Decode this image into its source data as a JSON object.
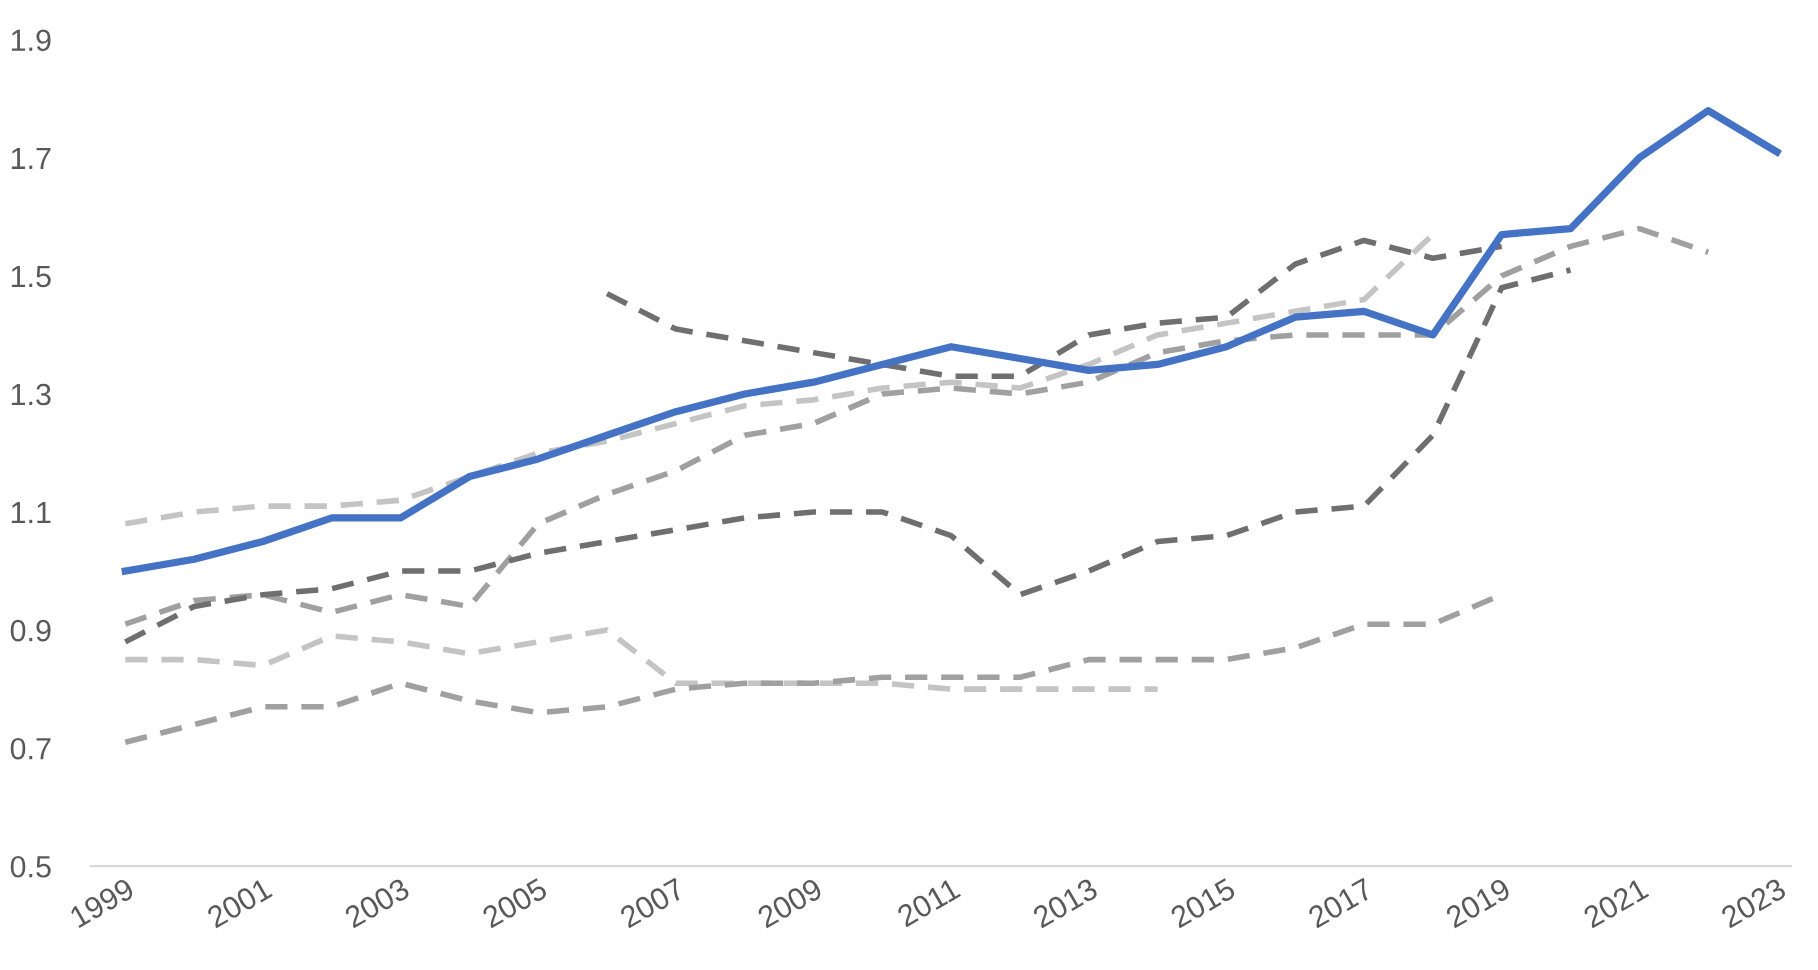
{
  "chart_data": {
    "type": "line",
    "x": [
      1999,
      2000,
      2001,
      2002,
      2003,
      2004,
      2005,
      2006,
      2007,
      2008,
      2009,
      2010,
      2011,
      2012,
      2013,
      2014,
      2015,
      2016,
      2017,
      2018,
      2019,
      2020,
      2021,
      2022,
      2023
    ],
    "series": [
      {
        "color": "#c4c4c4",
        "line_style": "dashed",
        "values": [
          1.08,
          1.1,
          1.11,
          1.11,
          1.12,
          1.16,
          1.2,
          1.22,
          1.25,
          1.28,
          1.29,
          1.31,
          1.32,
          1.31,
          1.35,
          1.4,
          1.42,
          1.44,
          1.46,
          1.57,
          null,
          null,
          null,
          null,
          null
        ]
      },
      {
        "color": "#6f6f6f",
        "line_style": "dashed",
        "values": [
          null,
          null,
          null,
          null,
          null,
          null,
          null,
          1.47,
          1.41,
          1.39,
          1.37,
          1.35,
          1.33,
          1.33,
          1.4,
          1.42,
          1.43,
          1.52,
          1.56,
          1.53,
          1.55,
          null,
          null,
          null,
          null
        ]
      },
      {
        "color": "#a0a0a0",
        "line_style": "dashed",
        "values": [
          0.91,
          0.95,
          0.96,
          0.93,
          0.96,
          0.94,
          1.08,
          1.13,
          1.17,
          1.23,
          1.25,
          1.3,
          1.31,
          1.3,
          1.32,
          1.37,
          1.39,
          1.4,
          1.4,
          1.4,
          1.5,
          1.55,
          1.58,
          1.54,
          null
        ]
      },
      {
        "color": "#6f6f6f",
        "line_style": "dashed",
        "values": [
          0.88,
          0.94,
          0.96,
          0.97,
          1.0,
          1.0,
          1.03,
          1.05,
          1.07,
          1.09,
          1.1,
          1.1,
          1.06,
          0.96,
          1.0,
          1.05,
          1.06,
          1.1,
          1.11,
          1.23,
          1.48,
          1.51,
          null,
          null,
          null
        ]
      },
      {
        "color": "#c4c4c4",
        "line_style": "dashed",
        "values": [
          0.85,
          0.85,
          0.84,
          0.89,
          0.88,
          0.86,
          0.88,
          0.9,
          0.81,
          0.81,
          0.81,
          0.81,
          0.8,
          0.8,
          0.8,
          0.8,
          null,
          null,
          null,
          null,
          null,
          null,
          null,
          null,
          null
        ]
      },
      {
        "color": "#a0a0a0",
        "line_style": "dashed",
        "values": [
          0.71,
          0.74,
          0.77,
          0.77,
          0.81,
          0.78,
          0.76,
          0.77,
          0.8,
          0.81,
          0.81,
          0.82,
          0.82,
          0.82,
          0.85,
          0.85,
          0.85,
          0.87,
          0.91,
          0.91,
          0.96,
          null,
          null,
          null,
          null
        ]
      },
      {
        "color": "#4472c4",
        "line_style": "solid",
        "values": [
          1.0,
          1.02,
          1.05,
          1.09,
          1.09,
          1.16,
          1.19,
          1.23,
          1.27,
          1.3,
          1.32,
          1.35,
          1.38,
          1.36,
          1.34,
          1.35,
          1.38,
          1.43,
          1.44,
          1.4,
          1.57,
          1.58,
          1.7,
          1.78,
          1.71
        ]
      }
    ],
    "xlim": [
      1998.5,
      2023.2
    ],
    "xticks": [
      1999,
      2001,
      2003,
      2005,
      2007,
      2009,
      2011,
      2013,
      2015,
      2017,
      2019,
      2021,
      2023
    ],
    "ylim": [
      0.5,
      1.9
    ],
    "yticks": [
      0.5,
      0.7,
      0.9,
      1.1,
      1.3,
      1.5,
      1.7,
      1.9
    ],
    "grid": false
  }
}
